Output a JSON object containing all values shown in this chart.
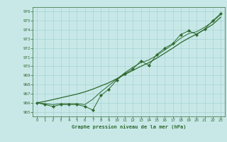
{
  "x": [
    0,
    1,
    2,
    3,
    4,
    5,
    6,
    7,
    8,
    9,
    10,
    11,
    12,
    13,
    14,
    15,
    16,
    17,
    18,
    19,
    20,
    21,
    22,
    23
  ],
  "y_main": [
    966.0,
    965.8,
    965.6,
    965.8,
    965.8,
    965.8,
    965.6,
    965.2,
    966.8,
    967.5,
    968.5,
    969.2,
    969.7,
    970.6,
    970.1,
    971.3,
    972.0,
    972.5,
    973.5,
    973.9,
    973.5,
    974.1,
    975.0,
    975.8
  ],
  "y_smooth": [
    966.0,
    965.9,
    965.8,
    965.9,
    965.9,
    965.9,
    965.8,
    966.4,
    967.2,
    967.9,
    968.6,
    969.3,
    969.9,
    970.4,
    970.7,
    971.2,
    971.8,
    972.4,
    973.1,
    973.6,
    973.8,
    974.3,
    974.9,
    975.7
  ],
  "y_trend": [
    966.0,
    966.15,
    966.35,
    966.55,
    966.75,
    966.95,
    967.2,
    967.5,
    967.85,
    968.2,
    968.65,
    969.1,
    969.55,
    970.0,
    970.4,
    970.9,
    971.45,
    972.0,
    972.6,
    973.1,
    973.55,
    974.05,
    974.6,
    975.4
  ],
  "line_color": "#2d6a2d",
  "bg_color": "#c8e8e8",
  "grid_color": "#9ecece",
  "xlabel": "Graphe pression niveau de la mer (hPa)",
  "ylim": [
    964.5,
    976.5
  ],
  "xlim": [
    -0.5,
    23.5
  ],
  "yticks": [
    965,
    966,
    967,
    968,
    969,
    970,
    971,
    972,
    973,
    974,
    975,
    976
  ],
  "xticks": [
    0,
    1,
    2,
    3,
    4,
    5,
    6,
    7,
    8,
    9,
    10,
    11,
    12,
    13,
    14,
    15,
    16,
    17,
    18,
    19,
    20,
    21,
    22,
    23
  ]
}
